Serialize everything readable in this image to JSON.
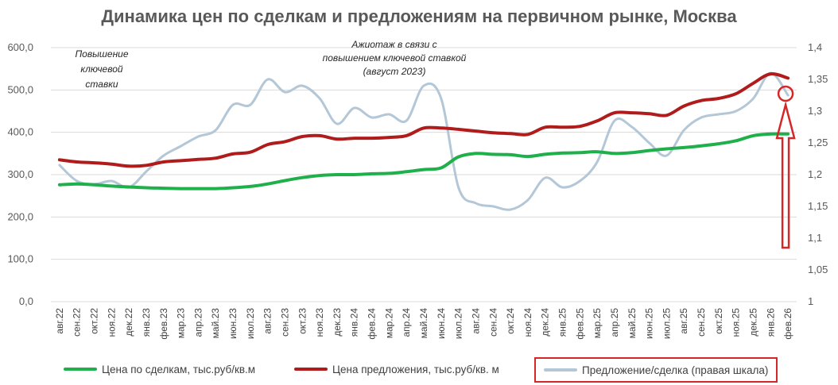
{
  "chart_data": {
    "type": "line",
    "title": "Динамика цен по сделкам и предложениям на первичном рынке, Москва",
    "categories": [
      "авг.22",
      "сен.22",
      "окт.22",
      "ноя.22",
      "дек.22",
      "янв.23",
      "фев.23",
      "мар.23",
      "апр.23",
      "май.23",
      "июн.23",
      "июл.23",
      "авг.23",
      "сен.23",
      "окт.23",
      "ноя.23",
      "дек.23",
      "янв.24",
      "фев.24",
      "мар.24",
      "апр.24",
      "май.24",
      "июн.24",
      "июл.24",
      "авг.24",
      "сен.24",
      "окт.24",
      "ноя.24",
      "дек.24",
      "янв.25",
      "фев.25",
      "мар.25",
      "апр.25",
      "май.25",
      "июн.25",
      "июл.25",
      "авг.25",
      "сен.25",
      "окт.25",
      "ноя.25",
      "дек.25",
      "янв.26",
      "фев.26"
    ],
    "y_left": {
      "ticks": [
        "0,0",
        "100,0",
        "200,0",
        "300,0",
        "400,0",
        "500,0",
        "600,0"
      ],
      "ylim": [
        0,
        600
      ]
    },
    "y_right": {
      "ticks": [
        "1",
        "1,05",
        "1,1",
        "1,15",
        "1,2",
        "1,25",
        "1,3",
        "1,35",
        "1,4"
      ],
      "ylim": [
        1,
        1.4
      ]
    },
    "series": [
      {
        "name": "Цена по сделкам, тыс.руб/кв.м",
        "axis": "left",
        "color": "#1fb04b",
        "stroke_width": 4,
        "values": [
          276,
          278,
          276,
          273,
          271,
          269,
          268,
          267,
          267,
          267,
          269,
          272,
          278,
          286,
          293,
          298,
          300,
          300,
          302,
          303,
          307,
          312,
          316,
          342,
          350,
          348,
          347,
          343,
          348,
          351,
          352,
          354,
          350,
          352,
          357,
          361,
          364,
          368,
          373,
          380,
          392,
          396,
          396
        ]
      },
      {
        "name": "Цена предложения, тыс.руб/кв. м",
        "axis": "left",
        "color": "#b01c1c",
        "stroke_width": 4,
        "values": [
          335,
          330,
          328,
          325,
          320,
          322,
          330,
          333,
          336,
          339,
          349,
          353,
          371,
          378,
          390,
          392,
          384,
          386,
          386,
          388,
          392,
          410,
          410,
          407,
          403,
          399,
          397,
          395,
          412,
          412,
          414,
          427,
          446,
          446,
          444,
          440,
          462,
          475,
          480,
          491,
          516,
          538,
          528
        ]
      },
      {
        "name": "Предложение/сделка (правая шкала)",
        "axis": "right",
        "color": "#b4c7d7",
        "stroke_width": 3,
        "values": [
          1.215,
          1.19,
          1.185,
          1.19,
          1.18,
          1.205,
          1.23,
          1.245,
          1.26,
          1.27,
          1.31,
          1.31,
          1.35,
          1.33,
          1.34,
          1.32,
          1.28,
          1.305,
          1.29,
          1.295,
          1.285,
          1.34,
          1.32,
          1.18,
          1.155,
          1.15,
          1.145,
          1.16,
          1.195,
          1.18,
          1.19,
          1.22,
          1.285,
          1.275,
          1.25,
          1.23,
          1.27,
          1.29,
          1.295,
          1.3,
          1.32,
          1.36,
          1.325
        ]
      }
    ],
    "legend": {
      "position": "bottom",
      "items": [
        "Цена по сделкам, тыс.руб/кв.м",
        "Цена предложения, тыс.руб/кв. м",
        "Предложение/сделка (правая шкала)"
      ]
    },
    "annotations": [
      {
        "lines": [
          "Повышение",
          "ключевой",
          "ставки"
        ],
        "category": "сен.22"
      },
      {
        "lines": [
          "Ажиотаж в связи с",
          "повышением ключевой ставкой",
          "(август 2023)"
        ],
        "category": "июн.24"
      }
    ],
    "highlight": {
      "color": "#d62728",
      "series": "Предложение/сделка (правая шкала)",
      "category": "фев.26"
    },
    "grid": true
  }
}
